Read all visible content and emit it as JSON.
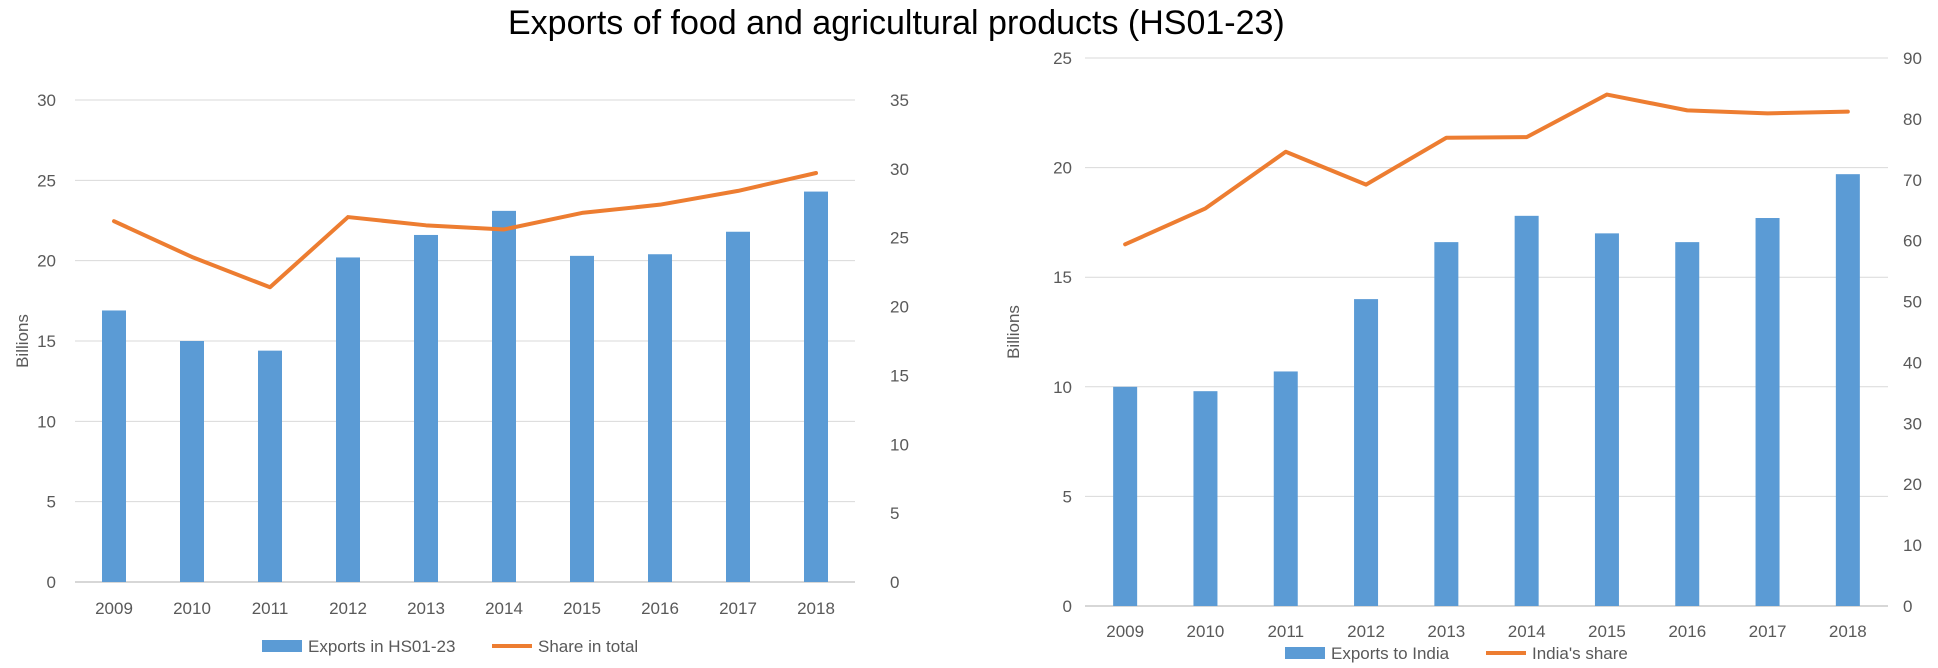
{
  "title": "Exports of food and agricultural products (HS01-23)",
  "colors": {
    "bar": "#5B9BD5",
    "line": "#ED7D31",
    "grid": "#D9D9D9",
    "axis": "#BFBFBF",
    "text": "#595959"
  },
  "chart_data": [
    {
      "type": "bar",
      "categories": [
        "2009",
        "2010",
        "2011",
        "2012",
        "2013",
        "2014",
        "2015",
        "2016",
        "2017",
        "2018"
      ],
      "ylabel": "Billions",
      "ylim": [
        0,
        30
      ],
      "y2lim": [
        0,
        35
      ],
      "yticks": [
        "0",
        "5",
        "10",
        "15",
        "20",
        "25",
        "30"
      ],
      "y2ticks": [
        "0",
        "5",
        "10",
        "15",
        "20",
        "25",
        "30",
        "35"
      ],
      "legend_position": "bottom",
      "series": [
        {
          "name": "Exports in HS01-23",
          "type": "bar",
          "axis": "left",
          "values": [
            16.9,
            15.0,
            14.4,
            20.2,
            21.6,
            23.1,
            20.3,
            20.4,
            21.8,
            24.3
          ]
        },
        {
          "name": "Share in total",
          "type": "line",
          "axis": "right",
          "values": [
            26.2,
            23.6,
            21.4,
            26.5,
            25.9,
            25.6,
            26.8,
            27.4,
            28.4,
            29.7
          ]
        }
      ]
    },
    {
      "type": "bar",
      "categories": [
        "2009",
        "2010",
        "2011",
        "2012",
        "2013",
        "2014",
        "2015",
        "2016",
        "2017",
        "2018"
      ],
      "ylabel": "Billions",
      "ylim": [
        0,
        25
      ],
      "y2lim": [
        0,
        90
      ],
      "yticks": [
        "0",
        "5",
        "10",
        "15",
        "20",
        "25"
      ],
      "y2ticks": [
        "0",
        "10",
        "20",
        "30",
        "40",
        "50",
        "60",
        "70",
        "80",
        "90"
      ],
      "legend_position": "bottom",
      "series": [
        {
          "name": "Exports to India",
          "type": "bar",
          "axis": "left",
          "values": [
            10.0,
            9.8,
            10.7,
            14.0,
            16.6,
            17.8,
            17.0,
            16.6,
            17.7,
            19.7
          ]
        },
        {
          "name": "India's share",
          "type": "line",
          "axis": "right",
          "values": [
            59.4,
            65.3,
            74.6,
            69.2,
            76.9,
            77.0,
            84.0,
            81.4,
            80.9,
            81.2
          ]
        }
      ]
    }
  ]
}
